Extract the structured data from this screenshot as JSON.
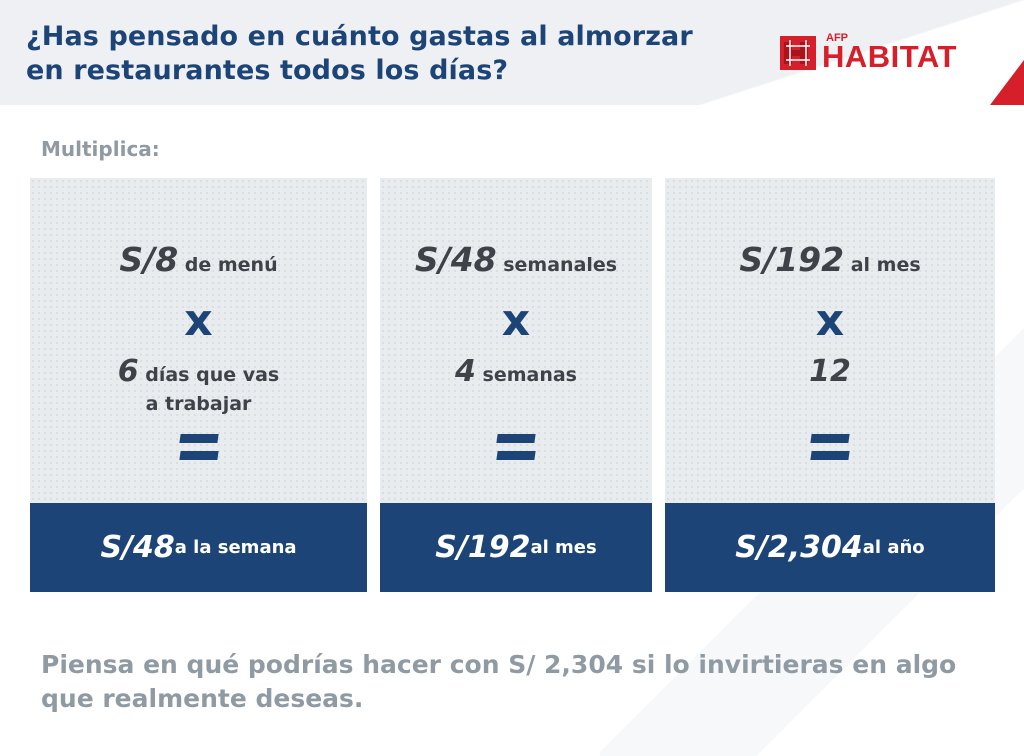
{
  "header": {
    "title": "¿Has pensado en cuánto gastas al almorzar en restaurantes todos los días?",
    "logo_small": "AFP",
    "logo_main": "HABITAT"
  },
  "subtitle": "Multiplica:",
  "cards": [
    {
      "amount_big": "S/8",
      "amount_small": " de menú",
      "operator": "x",
      "multiplier_big": "6",
      "multiplier_small_1": " días que vas",
      "multiplier_small_2": "a trabajar",
      "result_big": "S/48",
      "result_small": " a la semana"
    },
    {
      "amount_big": "S/48",
      "amount_small": " semanales",
      "operator": "x",
      "multiplier_big": "4",
      "multiplier_small_1": " semanas",
      "result_big": "S/192",
      "result_small": " al mes"
    },
    {
      "amount_big": "S/192",
      "amount_small": " al mes",
      "operator": "x",
      "multiplier_big": "12",
      "result_big": "S/2,304",
      "result_small": " al año"
    }
  ],
  "footer": "Piensa en qué podrías hacer con S/ 2,304 si lo invirtieras en algo que realmente deseas.",
  "colors": {
    "brand_blue": "#1d4476",
    "brand_red": "#d51f2a",
    "gray_text": "#8f9aa3",
    "card_bg": "#e9ecee"
  }
}
